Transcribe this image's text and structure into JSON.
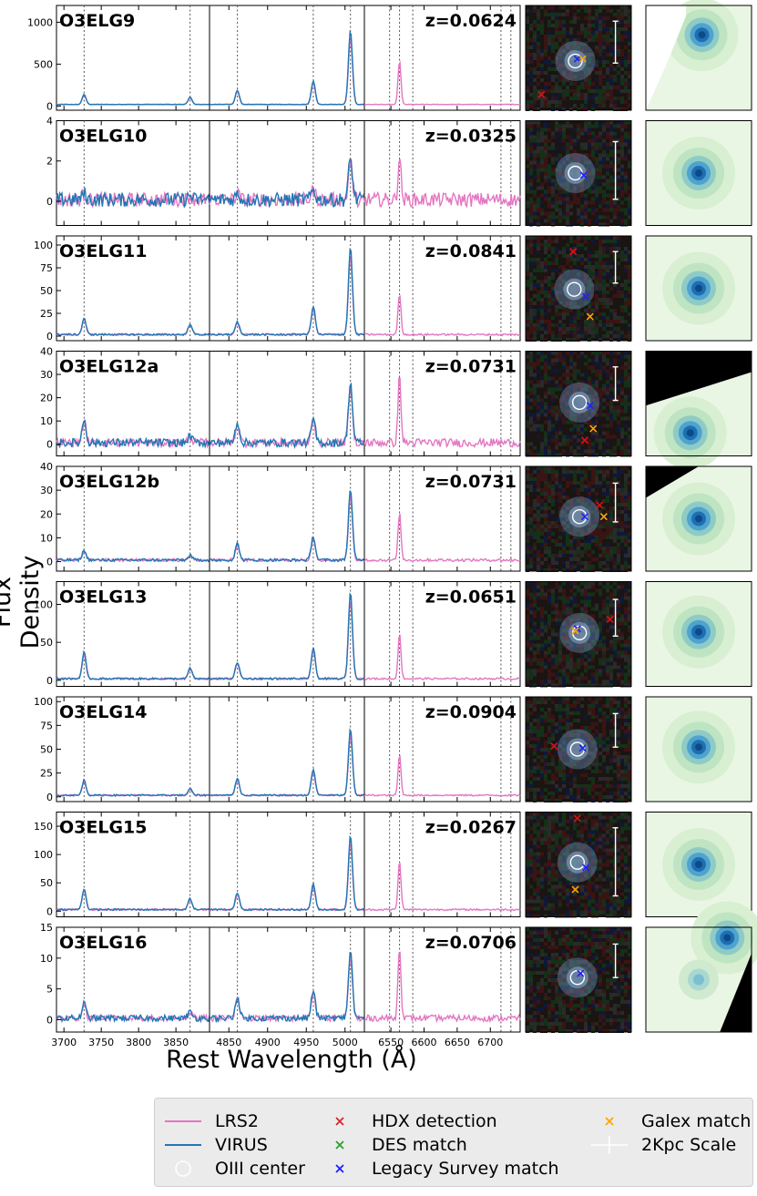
{
  "figure": {
    "ylabel": "Flux Density",
    "xlabel": "Rest Wavelength (Å)"
  },
  "chart_data": {
    "type": "line",
    "title": "",
    "xlabel": "Rest Wavelength (Å)",
    "ylabel": "Flux Density",
    "panels": {
      "oii": {
        "xlim": [
          3690,
          3895
        ],
        "xticks": [
          3700,
          3750,
          3800,
          3850
        ],
        "lines": [
          3727,
          3869
        ]
      },
      "hb_oiii": {
        "xlim": [
          4825,
          5025
        ],
        "xticks": [
          4850,
          4900,
          4950,
          5000
        ],
        "lines": [
          4861,
          4959,
          5007
        ]
      },
      "ha": {
        "xlim": [
          6510,
          6745
        ],
        "xticks": [
          6550,
          6600,
          6650,
          6700
        ],
        "lines": [
          6548,
          6563,
          6583,
          6716,
          6731
        ]
      }
    },
    "series_styles": [
      {
        "name": "LRS2",
        "color": "#e377c2"
      },
      {
        "name": "VIRUS",
        "color": "#1f77b4"
      }
    ],
    "rows": [
      {
        "name": "O3ELG9",
        "z": "z=0.0624",
        "ylim": [
          -50,
          1200
        ],
        "yticks": [
          0,
          500,
          1000
        ],
        "lines": {
          "oii": [
            120,
            90
          ],
          "hb": 170,
          "o4959": 280,
          "o5007": 880,
          "ha": 580
        },
        "noise": 3,
        "has_virus": true,
        "cutout": {
          "circle": [
            0.47,
            0.53
          ],
          "marks": [
            [
              "blue",
              0.49,
              0.51
            ],
            [
              "red",
              0.15,
              0.85
            ],
            [
              "orange",
              0.54,
              0.51
            ]
          ]
        },
        "scale_bar": [
          0.85,
          0.15,
          0.4
        ]
      },
      {
        "name": "O3ELG10",
        "z": "z=0.0325",
        "ylim": [
          -1.2,
          4
        ],
        "yticks": [
          0,
          2,
          4
        ],
        "lines": {
          "oii": [
            0.3,
            0.2
          ],
          "hb": 0.3,
          "o4959": 0.5,
          "o5007": 2.0,
          "ha": 2.4
        },
        "noise": 0.35,
        "has_virus": true,
        "lrs2_offset": 0.6,
        "cutout": {
          "circle": [
            0.47,
            0.5
          ],
          "marks": [
            [
              "blue",
              0.55,
              0.52
            ]
          ]
        },
        "scale_bar": [
          0.85,
          0.2,
          0.55
        ]
      },
      {
        "name": "O3ELG11",
        "z": "z=0.0841",
        "ylim": [
          -5,
          110
        ],
        "yticks": [
          0,
          25,
          50,
          75,
          100
        ],
        "lines": {
          "oii": [
            18,
            12
          ],
          "hb": 14,
          "o4959": 31,
          "o5007": 96,
          "ha": 50
        },
        "noise": 1,
        "has_virus": true,
        "cutout": {
          "circle": [
            0.46,
            0.51
          ],
          "marks": [
            [
              "blue",
              0.57,
              0.58
            ],
            [
              "red",
              0.45,
              0.15
            ],
            [
              "orange",
              0.61,
              0.77
            ]
          ]
        },
        "scale_bar": [
          0.85,
          0.15,
          0.3
        ]
      },
      {
        "name": "O3ELG12a",
        "z": "z=0.0731",
        "ylim": [
          -5,
          40
        ],
        "yticks": [
          0,
          10,
          20,
          30,
          40
        ],
        "lines": {
          "oii": [
            10,
            3
          ],
          "hb": 9,
          "o4959": 10,
          "o5007": 26,
          "ha": 32
        },
        "noise": 1.8,
        "has_virus": true,
        "cutout": {
          "circle": [
            0.51,
            0.49
          ],
          "marks": [
            [
              "blue",
              0.61,
              0.52
            ],
            [
              "red",
              0.56,
              0.85
            ],
            [
              "orange",
              0.64,
              0.74
            ]
          ]
        },
        "scale_bar": [
          0.85,
          0.15,
          0.32
        ]
      },
      {
        "name": "O3ELG12b",
        "z": "z=0.0731",
        "ylim": [
          -4,
          40
        ],
        "yticks": [
          0,
          10,
          20,
          30,
          40
        ],
        "lines": {
          "oii": [
            4,
            2
          ],
          "hb": 7,
          "o4959": 10,
          "o5007": 30,
          "ha": 22
        },
        "noise": 0.6,
        "has_virus": true,
        "cutout": {
          "circle": [
            0.51,
            0.48
          ],
          "marks": [
            [
              "blue",
              0.56,
              0.48
            ],
            [
              "red",
              0.7,
              0.37
            ],
            [
              "orange",
              0.74,
              0.48
            ]
          ]
        },
        "scale_bar": [
          0.85,
          0.16,
          0.37
        ]
      },
      {
        "name": "O3ELG13",
        "z": "z=0.0651",
        "ylim": [
          -8,
          130
        ],
        "yticks": [
          0,
          50,
          100
        ],
        "lines": {
          "oii": [
            35,
            14
          ],
          "hb": 22,
          "o4959": 40,
          "o5007": 115,
          "ha": 65
        },
        "noise": 1.2,
        "has_virus": true,
        "cutout": {
          "circle": [
            0.51,
            0.49
          ],
          "marks": [
            [
              "blue",
              0.49,
              0.45
            ],
            [
              "red",
              0.8,
              0.36
            ],
            [
              "orange",
              0.47,
              0.47
            ]
          ]
        },
        "scale_bar": [
          0.85,
          0.17,
          0.35
        ]
      },
      {
        "name": "O3ELG14",
        "z": "z=0.0904",
        "ylim": [
          -5,
          105
        ],
        "yticks": [
          0,
          25,
          50,
          75,
          100
        ],
        "lines": {
          "oii": [
            16,
            7
          ],
          "hb": 18,
          "o4959": 27,
          "o5007": 70,
          "ha": 47
        },
        "noise": 0.8,
        "has_virus": true,
        "cutout": {
          "circle": [
            0.49,
            0.5
          ],
          "marks": [
            [
              "blue",
              0.54,
              0.49
            ],
            [
              "red",
              0.27,
              0.47
            ]
          ]
        },
        "scale_bar": [
          0.85,
          0.16,
          0.32
        ]
      },
      {
        "name": "O3ELG15",
        "z": "z=0.0267",
        "ylim": [
          -10,
          175
        ],
        "yticks": [
          0,
          50,
          100,
          150
        ],
        "lines": {
          "oii": [
            37,
            20
          ],
          "hb": 30,
          "o4959": 45,
          "o5007": 132,
          "ha": 95
        },
        "noise": 1.5,
        "has_virus": true,
        "cutout": {
          "circle": [
            0.49,
            0.48
          ],
          "marks": [
            [
              "blue",
              0.57,
              0.53
            ],
            [
              "red",
              0.49,
              0.06
            ],
            [
              "orange",
              0.47,
              0.74
            ]
          ]
        },
        "scale_bar": [
          0.85,
          0.15,
          0.65
        ]
      },
      {
        "name": "O3ELG16",
        "z": "z=0.0706",
        "ylim": [
          -2,
          15
        ],
        "yticks": [
          0,
          5,
          10,
          15
        ],
        "lines": {
          "oii": [
            2.4,
            1.0
          ],
          "hb": 3.5,
          "o4959": 4.5,
          "o5007": 11,
          "ha": 13
        },
        "noise": 0.5,
        "has_virus": true,
        "cutout": {
          "circle": [
            0.49,
            0.48
          ],
          "marks": [
            [
              "blue",
              0.52,
              0.44
            ]
          ]
        },
        "scale_bar": [
          0.85,
          0.16,
          0.32
        ]
      }
    ],
    "density_maps": [
      {
        "blob": [
          0.53,
          0.28
        ],
        "mask": "upper-left-slope"
      },
      {
        "blob": [
          0.5,
          0.5
        ],
        "mask": "none"
      },
      {
        "blob": [
          0.5,
          0.5
        ],
        "mask": "none"
      },
      {
        "blob": [
          0.42,
          0.78
        ],
        "mask": "top-diagonal"
      },
      {
        "blob": [
          0.5,
          0.5
        ],
        "mask": "top-left-triangle"
      },
      {
        "blob": [
          0.5,
          0.48
        ],
        "mask": "none"
      },
      {
        "blob": [
          0.5,
          0.48
        ],
        "mask": "none"
      },
      {
        "blob": [
          0.5,
          0.5
        ],
        "mask": "none"
      },
      {
        "blob": [
          0.77,
          0.1
        ],
        "blob2": [
          0.5,
          0.5
        ],
        "mask": "bottom-right"
      }
    ]
  },
  "legend": {
    "items": [
      {
        "label": "LRS2",
        "kind": "line",
        "color": "#e377c2"
      },
      {
        "label": "VIRUS",
        "kind": "line",
        "color": "#1f77b4"
      },
      {
        "label": "OIII center",
        "kind": "circle",
        "color": "#ffffff"
      },
      {
        "label": "HDX detection",
        "kind": "x",
        "color": "#d62728"
      },
      {
        "label": "DES match",
        "kind": "x",
        "color": "#2ca02c"
      },
      {
        "label": "Legacy Survey match",
        "kind": "x",
        "color": "#1f1fff"
      },
      {
        "label": "Galex match",
        "kind": "x",
        "color": "#ffa500"
      },
      {
        "label": "2Kpc Scale",
        "kind": "scale",
        "color": "#ffffff"
      }
    ]
  }
}
